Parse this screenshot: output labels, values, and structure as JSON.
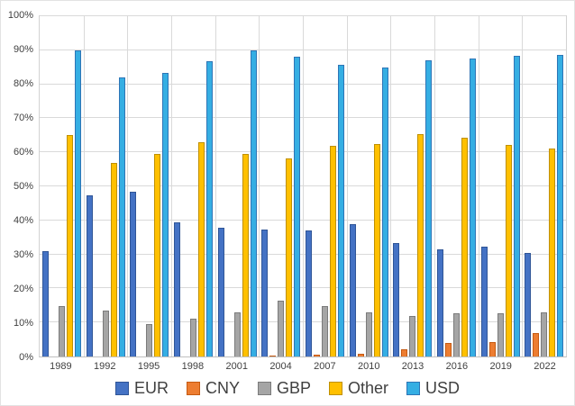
{
  "chart_data": {
    "type": "bar",
    "title": "",
    "xlabel": "",
    "ylabel": "",
    "ylim": [
      0,
      100
    ],
    "ytick_step": 10,
    "ytick_labels": [
      "0%",
      "10%",
      "20%",
      "30%",
      "40%",
      "50%",
      "60%",
      "70%",
      "80%",
      "90%",
      "100%"
    ],
    "grid": true,
    "legend_position": "bottom",
    "categories": [
      "1989",
      "1992",
      "1995",
      "1998",
      "2001",
      "2004",
      "2007",
      "2010",
      "2013",
      "2016",
      "2019",
      "2022"
    ],
    "series": [
      {
        "name": "EUR",
        "color": "#4472c4",
        "border": "#2f5597",
        "values": [
          31.0,
          47.4,
          48.4,
          39.5,
          37.9,
          37.4,
          37.0,
          39.0,
          33.4,
          31.4,
          32.3,
          30.5
        ]
      },
      {
        "name": "CNY",
        "color": "#ed7d31",
        "border": "#c55a11",
        "values": [
          0,
          0,
          0,
          0,
          0,
          0.1,
          0.5,
          0.9,
          2.2,
          4.0,
          4.3,
          7.0
        ]
      },
      {
        "name": "GBP",
        "color": "#a5a5a5",
        "border": "#7b7b7b",
        "values": [
          14.8,
          13.6,
          9.4,
          11.0,
          13.0,
          16.5,
          14.9,
          12.9,
          11.8,
          12.8,
          12.8,
          12.9
        ]
      },
      {
        "name": "Other",
        "color": "#ffc000",
        "border": "#bf9000",
        "values": [
          65.0,
          57.0,
          59.5,
          63.0,
          59.4,
          58.1,
          62.0,
          62.4,
          65.4,
          64.2,
          62.2,
          61.0
        ]
      },
      {
        "name": "USD",
        "color": "#35aee3",
        "border": "#2e75b6",
        "values": [
          90.0,
          82.0,
          83.3,
          86.8,
          89.9,
          88.0,
          85.6,
          84.9,
          87.0,
          87.6,
          88.3,
          88.5
        ]
      }
    ]
  }
}
